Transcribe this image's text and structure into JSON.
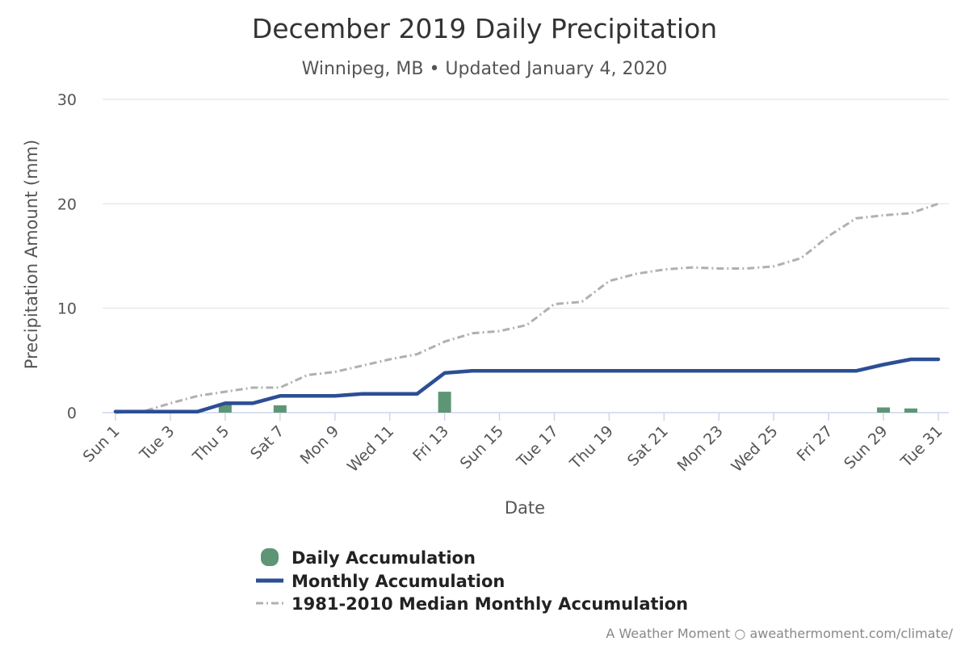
{
  "colors": {
    "daily": "#5e9675",
    "monthly": "#2c4e94",
    "median": "#b0b0b0",
    "grid": "#e3e3e3",
    "axis": "#ccd6eb"
  },
  "chart_data": {
    "type": "line",
    "title": "December 2019 Daily Precipitation",
    "subtitle": "Winnipeg, MB • Updated January 4, 2020",
    "xlabel": "Date",
    "ylabel": "Precipitation Amount (mm)",
    "ylim": [
      0,
      30
    ],
    "yticks": [
      0,
      10,
      20,
      30
    ],
    "grid": true,
    "legend": "bottom-center",
    "days": [
      1,
      2,
      3,
      4,
      5,
      6,
      7,
      8,
      9,
      10,
      11,
      12,
      13,
      14,
      15,
      16,
      17,
      18,
      19,
      20,
      21,
      22,
      23,
      24,
      25,
      26,
      27,
      28,
      29,
      30,
      31
    ],
    "tick_labels": [
      {
        "day": 1,
        "label": "Sun 1"
      },
      {
        "day": 3,
        "label": "Tue 3"
      },
      {
        "day": 5,
        "label": "Thu 5"
      },
      {
        "day": 7,
        "label": "Sat 7"
      },
      {
        "day": 9,
        "label": "Mon 9"
      },
      {
        "day": 11,
        "label": "Wed 11"
      },
      {
        "day": 13,
        "label": "Fri 13"
      },
      {
        "day": 15,
        "label": "Sun 15"
      },
      {
        "day": 17,
        "label": "Tue 17"
      },
      {
        "day": 19,
        "label": "Thu 19"
      },
      {
        "day": 21,
        "label": "Sat 21"
      },
      {
        "day": 23,
        "label": "Mon 23"
      },
      {
        "day": 25,
        "label": "Wed 25"
      },
      {
        "day": 27,
        "label": "Fri 27"
      },
      {
        "day": 29,
        "label": "Sun 29"
      },
      {
        "day": 31,
        "label": "Tue 31"
      }
    ],
    "series": [
      {
        "name": "Daily Accumulation",
        "kind": "bar",
        "values": [
          0,
          0,
          0,
          0,
          0.8,
          0,
          0.7,
          0,
          0,
          0,
          0,
          0,
          2.0,
          0,
          0,
          0,
          0,
          0,
          0,
          0,
          0,
          0,
          0,
          0,
          0,
          0,
          0,
          0,
          0.5,
          0.4,
          0
        ]
      },
      {
        "name": "Monthly Accumulation",
        "kind": "line",
        "values": [
          0.1,
          0.1,
          0.1,
          0.1,
          0.9,
          0.9,
          1.6,
          1.6,
          1.6,
          1.8,
          1.8,
          1.8,
          3.8,
          4.0,
          4.0,
          4.0,
          4.0,
          4.0,
          4.0,
          4.0,
          4.0,
          4.0,
          4.0,
          4.0,
          4.0,
          4.0,
          4.0,
          4.0,
          4.6,
          5.1,
          5.1
        ]
      },
      {
        "name": "1981-2010 Median Monthly Accumulation",
        "kind": "dashdot",
        "values": [
          0.0,
          0.1,
          0.9,
          1.6,
          2.0,
          2.4,
          2.4,
          3.6,
          3.9,
          4.5,
          5.1,
          5.6,
          6.8,
          7.6,
          7.8,
          8.4,
          10.4,
          10.6,
          12.6,
          13.3,
          13.7,
          13.9,
          13.8,
          13.8,
          14.0,
          14.8,
          16.9,
          18.6,
          18.9,
          19.1,
          20.0
        ]
      }
    ]
  },
  "credits": "A Weather Moment ○ aweathermoment.com/climate/"
}
